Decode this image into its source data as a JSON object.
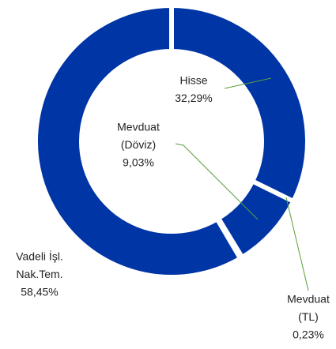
{
  "chart_data": {
    "type": "donut",
    "categories": [
      [
        "Hisse"
      ],
      [
        "Mevduat",
        "(Döviz)"
      ],
      [
        "Mevduat",
        "(TL)"
      ],
      [
        "Vadeli İşl.",
        "Nak.Tem."
      ]
    ],
    "values": [
      32.29,
      9.03,
      0.23,
      58.45
    ],
    "value_labels": [
      "32,29%",
      "9,03%",
      "0,23%",
      "58,45%"
    ],
    "color": "#0035a5"
  }
}
